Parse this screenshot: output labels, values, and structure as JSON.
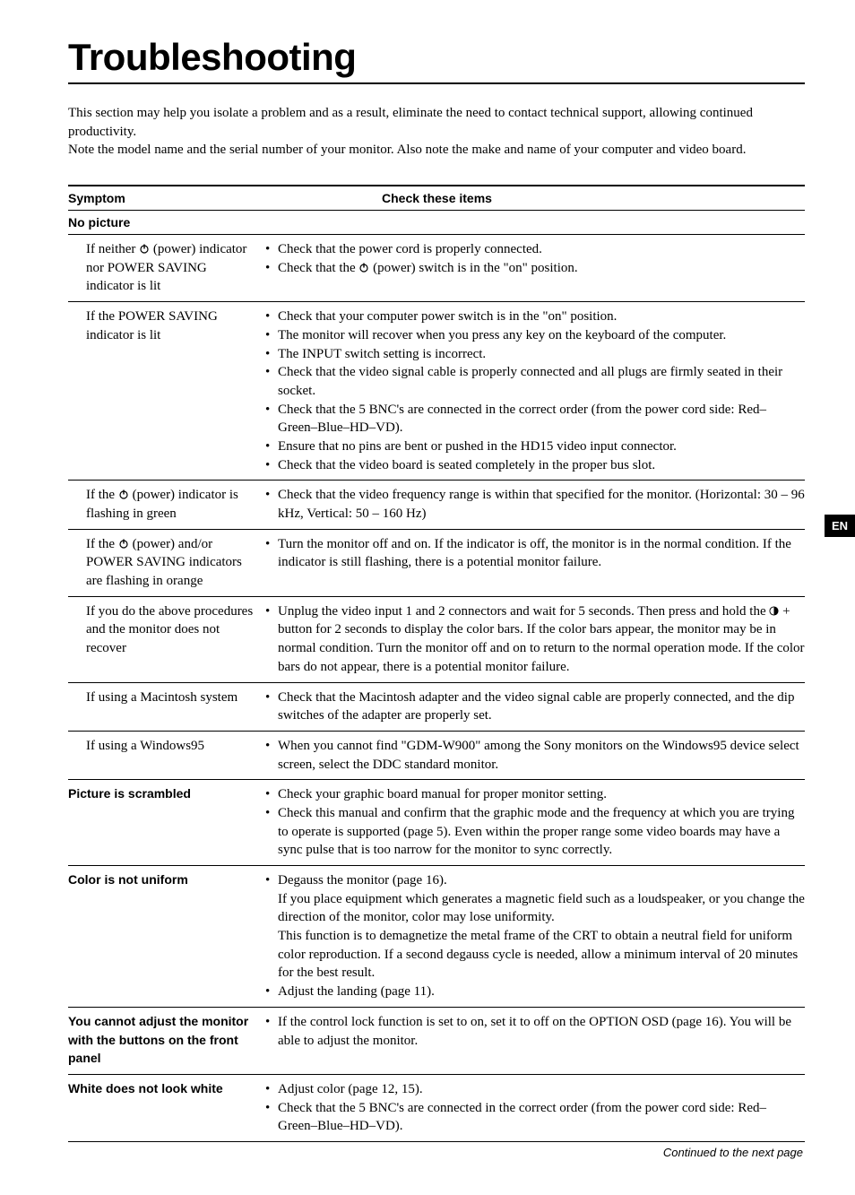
{
  "title": "Troubleshooting",
  "intro_line1": "This section may help you isolate a problem and as a result, eliminate the need to contact technical support, allowing continued productivity.",
  "intro_line2": "Note the model name and the serial number of your monitor. Also note the make and name of your computer and video board.",
  "header_symptom": "Symptom",
  "header_check": "Check these items",
  "lang_tab": "EN",
  "groups": [
    {
      "title": "No picture",
      "rows": [
        {
          "symptom_pre": "If neither ",
          "symptom_icon": "power",
          "symptom_post": " (power) indicator nor POWER SAVING indicator is lit",
          "checks": [
            {
              "text": "Check that the power cord is properly connected."
            },
            {
              "pre": "Check that the ",
              "icon": "power",
              "post": " (power) switch is in the \"on\" position."
            }
          ]
        },
        {
          "symptom": "If the POWER SAVING indicator is lit",
          "checks": [
            {
              "text": "Check that your computer power switch is in the \"on\" position."
            },
            {
              "text": "The monitor will recover when you press any key on the keyboard of the computer."
            },
            {
              "text": "The INPUT switch setting is incorrect."
            },
            {
              "text": "Check that the video signal cable is properly connected and all plugs are firmly seated in their socket."
            },
            {
              "text": "Check that the 5 BNC's are connected in the correct order (from the power cord side: Red–Green–Blue–HD–VD)."
            },
            {
              "text": "Ensure that no pins are bent or pushed in the HD15 video input connector."
            },
            {
              "text": "Check that the video board is seated completely in the proper bus slot."
            }
          ]
        },
        {
          "symptom_pre": "If the ",
          "symptom_icon": "power",
          "symptom_post": " (power) indicator is flashing in green",
          "checks": [
            {
              "text": "Check that the video frequency range is within that specified for the monitor. (Horizontal: 30 – 96 kHz, Vertical: 50 – 160 Hz)"
            }
          ]
        },
        {
          "symptom_pre": "If the ",
          "symptom_icon": "power",
          "symptom_post": " (power) and/or POWER SAVING indicators are flashing in orange",
          "checks": [
            {
              "text": "Turn the monitor off and on. If the indicator is off, the monitor is in the normal condition. If the indicator is still flashing, there is a potential monitor failure."
            }
          ]
        },
        {
          "symptom": "If you do the above procedures and the monitor does not recover",
          "checks": [
            {
              "pre": "Unplug the video input 1 and 2 connectors and wait for 5 seconds. Then press and hold the ",
              "icon": "contrast",
              "post": " + button for 2 seconds to display the color bars. If the color bars appear, the monitor may be in normal condition. Turn the monitor off and on to return to the normal operation mode. If the color bars do not appear, there is a potential monitor failure."
            }
          ]
        },
        {
          "symptom": "If using a Macintosh system",
          "checks": [
            {
              "text": "Check that the Macintosh adapter and the video signal cable are properly connected, and the dip switches of the adapter are properly set."
            }
          ]
        },
        {
          "symptom": "If using a Windows95",
          "checks": [
            {
              "text": "When you cannot find \"GDM-W900\" among the Sony monitors on the Windows95 device select screen, select the DDC standard monitor."
            }
          ]
        }
      ]
    },
    {
      "title": "Picture is scrambled",
      "inline": true,
      "checks": [
        {
          "text": "Check your graphic board manual for proper monitor setting."
        },
        {
          "text": "Check this manual and confirm that the graphic mode and the frequency at which you are trying to operate is supported (page 5). Even within the proper range some video boards may have a sync pulse that is too narrow for the monitor to sync correctly."
        }
      ]
    },
    {
      "title": "Color is not uniform",
      "inline": true,
      "checks": [
        {
          "text": "Degauss the monitor (page 16).",
          "sub": "If you place equipment which generates a magnetic field such as a loudspeaker, or you change the direction of the monitor, color may lose uniformity.\nThis function is to demagnetize the metal frame of the CRT to obtain a neutral field for uniform color reproduction. If a second degauss cycle is needed, allow a minimum interval of 20 minutes for the best result."
        },
        {
          "text": "Adjust the landing (page 11)."
        }
      ]
    },
    {
      "title": "You cannot adjust the monitor with the buttons on the front panel",
      "inline": true,
      "checks": [
        {
          "text": "If the control lock function is set to on, set it to off on the OPTION OSD (page 16). You will be able to adjust the monitor."
        }
      ]
    },
    {
      "title": "White does not look white",
      "inline": true,
      "checks": [
        {
          "text": "Adjust color (page 12, 15)."
        },
        {
          "text": "Check that the 5 BNC's are connected in the correct order (from the power cord side: Red–Green–Blue–HD–VD)."
        }
      ]
    }
  ],
  "continued": "Continued to the next page",
  "colors": {
    "text": "#000000",
    "background": "#ffffff",
    "rule": "#000000"
  },
  "typography": {
    "heading_family": "Helvetica",
    "heading_weight": 800,
    "heading_size_pt": 32,
    "body_family": "Georgia",
    "body_size_pt": 11,
    "label_weight": 700
  }
}
